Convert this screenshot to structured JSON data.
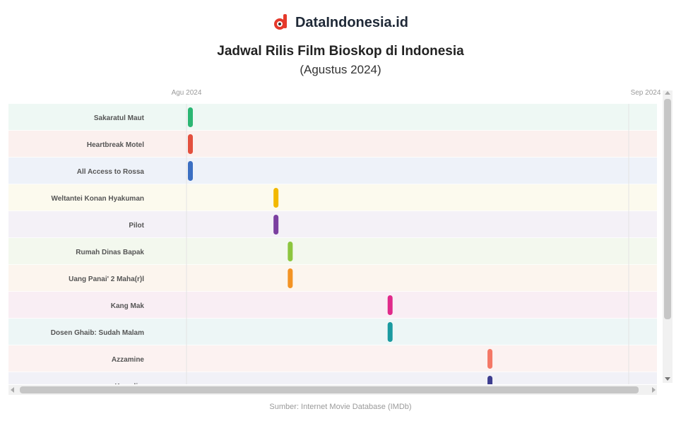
{
  "brand": {
    "name": "DataIndonesia.id",
    "accent": "#e5392b"
  },
  "header": {
    "title": "Jadwal Rilis Film Bioskop di Indonesia",
    "subtitle": "(Agustus 2024)"
  },
  "footer": {
    "source": "Sumber: Internet Movie Database (IMDb)"
  },
  "chart_data": {
    "type": "timeline",
    "x_ticks": [
      "Agu 2024",
      "Sep 2024"
    ],
    "x_range": [
      "2024-08-01",
      "2024-09-01"
    ],
    "grid": true,
    "scrollbars": true,
    "rows": [
      {
        "name": "Sakaratul Maut",
        "date": "2024-08-01",
        "color": "#2bb673",
        "bg": "#eef8f4"
      },
      {
        "name": "Heartbreak Motel",
        "date": "2024-08-01",
        "color": "#e3503e",
        "bg": "#fbf0ee"
      },
      {
        "name": "All Access to Rossa",
        "date": "2024-08-01",
        "color": "#3b6fc2",
        "bg": "#eef2f9"
      },
      {
        "name": "Weltantei Konan Hyakuman",
        "date": "2024-08-07",
        "color": "#f2b800",
        "bg": "#fcfaee"
      },
      {
        "name": "Pilot",
        "date": "2024-08-07",
        "color": "#7b3fa0",
        "bg": "#f4f1f7"
      },
      {
        "name": "Rumah Dinas Bapak",
        "date": "2024-08-08",
        "color": "#8cc63e",
        "bg": "#f3f8ee"
      },
      {
        "name": "Uang Panai' 2 Maha(r)l",
        "date": "2024-08-08",
        "color": "#f39324",
        "bg": "#fcf5ee"
      },
      {
        "name": "Kang Mak",
        "date": "2024-08-15",
        "color": "#e02a8a",
        "bg": "#f9eef4"
      },
      {
        "name": "Dosen Ghaib: Sudah Malam",
        "date": "2024-08-15",
        "color": "#1a9aa0",
        "bg": "#edf6f6"
      },
      {
        "name": "Azzamine",
        "date": "2024-08-22",
        "color": "#f47866",
        "bg": "#fcf2f1"
      },
      {
        "name": "Kemalim",
        "date": "2024-08-22",
        "color": "#3d3d8f",
        "bg": "#f1f1f7"
      }
    ]
  }
}
